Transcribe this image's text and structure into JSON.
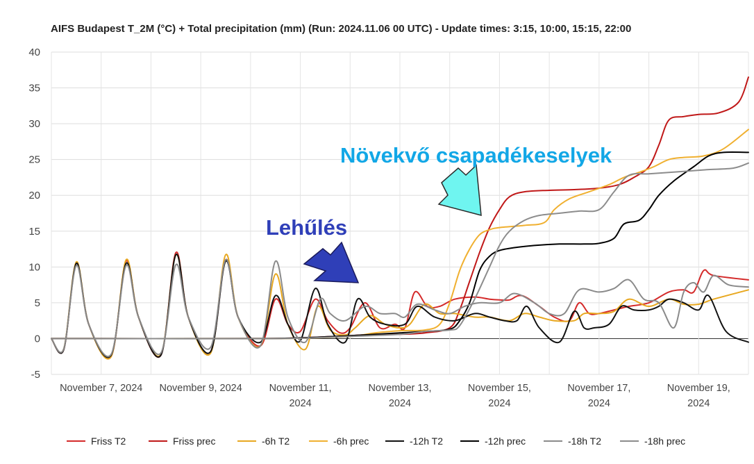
{
  "chart_data": {
    "type": "line",
    "title": "AIFS Budapest T_2M (°C) + Total precipitation (mm) (Run: 2024.11.06 00 UTC) - Update times: 3:15, 10:00, 15:15, 22:00",
    "xlabel": "",
    "ylabel": "",
    "ylim": [
      -5,
      40
    ],
    "yticks": [
      -5,
      0,
      5,
      10,
      15,
      20,
      25,
      30,
      35,
      40
    ],
    "xlim": [
      0,
      14
    ],
    "x_unit": "days since 2024-11-06 00 UTC",
    "xticks": [
      {
        "x": 1,
        "label": [
          "November 7, 2024"
        ]
      },
      {
        "x": 3,
        "label": [
          "November 9, 2024"
        ]
      },
      {
        "x": 5,
        "label": [
          "November 11,",
          "2024"
        ]
      },
      {
        "x": 7,
        "label": [
          "November 13,",
          "2024"
        ]
      },
      {
        "x": 9,
        "label": [
          "November 15,",
          "2024"
        ]
      },
      {
        "x": 11,
        "label": [
          "November 17,",
          "2024"
        ]
      },
      {
        "x": 13,
        "label": [
          "November 19,",
          "2024"
        ]
      }
    ],
    "grid": true,
    "legend_position": "bottom",
    "series": [
      {
        "name": "Friss T2",
        "color": "#d42a2a",
        "points": [
          [
            0,
            0
          ],
          [
            0.25,
            -1.5
          ],
          [
            0.5,
            10.5
          ],
          [
            0.75,
            2
          ],
          [
            1.2,
            -2.5
          ],
          [
            1.5,
            10.8
          ],
          [
            1.75,
            3
          ],
          [
            2.2,
            -2.3
          ],
          [
            2.5,
            12
          ],
          [
            2.75,
            3
          ],
          [
            3.2,
            -1.8
          ],
          [
            3.5,
            11
          ],
          [
            3.75,
            3
          ],
          [
            4.2,
            -1
          ],
          [
            4.5,
            5.5
          ],
          [
            4.75,
            2
          ],
          [
            5,
            1
          ],
          [
            5.3,
            5.5
          ],
          [
            5.55,
            2.5
          ],
          [
            5.8,
            0.8
          ],
          [
            6,
            1.5
          ],
          [
            6.3,
            5
          ],
          [
            6.6,
            1.5
          ],
          [
            6.9,
            2
          ],
          [
            7.1,
            1.5
          ],
          [
            7.3,
            6.5
          ],
          [
            7.55,
            4.5
          ],
          [
            7.8,
            4.5
          ],
          [
            8.1,
            5.5
          ],
          [
            8.5,
            5.8
          ],
          [
            8.8,
            5.5
          ],
          [
            9,
            5.4
          ],
          [
            9.2,
            5.4
          ],
          [
            9.45,
            6
          ],
          [
            9.8,
            4.5
          ],
          [
            10.1,
            3
          ],
          [
            10.4,
            2.5
          ],
          [
            10.6,
            5
          ],
          [
            10.8,
            3.5
          ],
          [
            11,
            3.5
          ],
          [
            11.3,
            4
          ],
          [
            11.6,
            4.5
          ],
          [
            12,
            5
          ],
          [
            12.4,
            6.5
          ],
          [
            12.7,
            6.8
          ],
          [
            12.9,
            6.5
          ],
          [
            13.1,
            9.5
          ],
          [
            13.3,
            8.8
          ],
          [
            14,
            8.2
          ]
        ]
      },
      {
        "name": "Friss prec",
        "color": "#c01818",
        "points": [
          [
            0,
            0
          ],
          [
            4,
            0
          ],
          [
            5,
            0.1
          ],
          [
            6,
            0.4
          ],
          [
            6.5,
            0.6
          ],
          [
            7,
            0.6
          ],
          [
            7.5,
            0.8
          ],
          [
            8,
            1.5
          ],
          [
            8.2,
            4
          ],
          [
            8.4,
            8
          ],
          [
            8.6,
            12
          ],
          [
            8.8,
            15.5
          ],
          [
            9,
            18
          ],
          [
            9.2,
            19.8
          ],
          [
            9.5,
            20.5
          ],
          [
            10,
            20.7
          ],
          [
            10.5,
            20.8
          ],
          [
            11,
            21
          ],
          [
            11.4,
            21.5
          ],
          [
            11.7,
            22.5
          ],
          [
            12,
            24
          ],
          [
            12.2,
            27
          ],
          [
            12.4,
            30.5
          ],
          [
            12.7,
            31
          ],
          [
            13,
            31.3
          ],
          [
            13.4,
            31.5
          ],
          [
            13.8,
            33
          ],
          [
            14,
            36.5
          ]
        ]
      },
      {
        "name": "-6h T2",
        "color": "#e8a820",
        "points": [
          [
            0,
            0
          ],
          [
            0.25,
            -1.4
          ],
          [
            0.5,
            10.7
          ],
          [
            0.75,
            2
          ],
          [
            1.2,
            -2.5
          ],
          [
            1.5,
            11
          ],
          [
            1.75,
            3
          ],
          [
            2.2,
            -2.2
          ],
          [
            2.5,
            11.7
          ],
          [
            2.75,
            3
          ],
          [
            3.2,
            -2
          ],
          [
            3.5,
            11.7
          ],
          [
            3.75,
            3
          ],
          [
            4.2,
            -1
          ],
          [
            4.5,
            9
          ],
          [
            4.75,
            2
          ],
          [
            5.1,
            -1.5
          ],
          [
            5.35,
            4.5
          ],
          [
            5.6,
            1.2
          ],
          [
            5.9,
            0.5
          ],
          [
            6.1,
            1.5
          ],
          [
            6.4,
            3.2
          ],
          [
            6.7,
            2
          ],
          [
            7,
            1.5
          ],
          [
            7.2,
            2
          ],
          [
            7.5,
            4.8
          ],
          [
            7.8,
            3.5
          ],
          [
            8.1,
            3.5
          ],
          [
            8.5,
            3
          ],
          [
            8.8,
            3
          ],
          [
            9.2,
            2.5
          ],
          [
            9.5,
            3.5
          ],
          [
            9.8,
            3
          ],
          [
            10.1,
            2.5
          ],
          [
            10.5,
            2.5
          ],
          [
            10.7,
            3.5
          ],
          [
            11,
            3.5
          ],
          [
            11.3,
            3.8
          ],
          [
            11.6,
            5.5
          ],
          [
            12,
            4.5
          ],
          [
            12.4,
            5.5
          ],
          [
            12.7,
            4.8
          ],
          [
            13,
            4.8
          ],
          [
            13.3,
            5.5
          ],
          [
            14,
            6.8
          ]
        ]
      },
      {
        "name": "-6h prec",
        "color": "#f0b030",
        "points": [
          [
            0,
            0
          ],
          [
            4,
            0
          ],
          [
            5,
            0.05
          ],
          [
            6,
            0.3
          ],
          [
            6.5,
            0.8
          ],
          [
            7,
            1.1
          ],
          [
            7.5,
            1.2
          ],
          [
            7.8,
            2
          ],
          [
            8,
            5
          ],
          [
            8.2,
            9.5
          ],
          [
            8.4,
            12.5
          ],
          [
            8.6,
            14.5
          ],
          [
            8.8,
            15.2
          ],
          [
            9,
            15.5
          ],
          [
            9.5,
            15.8
          ],
          [
            9.9,
            16.2
          ],
          [
            10.1,
            18
          ],
          [
            10.4,
            19.5
          ],
          [
            10.8,
            20.5
          ],
          [
            11.2,
            21.5
          ],
          [
            11.5,
            22.5
          ],
          [
            11.8,
            23.2
          ],
          [
            12.1,
            24
          ],
          [
            12.4,
            25
          ],
          [
            12.7,
            25.3
          ],
          [
            13.1,
            25.5
          ],
          [
            13.5,
            26.5
          ],
          [
            14,
            29.2
          ]
        ]
      },
      {
        "name": "-12h T2",
        "color": "#111111",
        "points": [
          [
            0,
            0
          ],
          [
            0.25,
            -1.5
          ],
          [
            0.5,
            10.5
          ],
          [
            0.75,
            2
          ],
          [
            1.2,
            -2.3
          ],
          [
            1.5,
            10.5
          ],
          [
            1.75,
            3
          ],
          [
            2.2,
            -2.3
          ],
          [
            2.5,
            11.7
          ],
          [
            2.75,
            3
          ],
          [
            3.2,
            -1.8
          ],
          [
            3.5,
            10.8
          ],
          [
            3.75,
            3
          ],
          [
            4.2,
            -0.5
          ],
          [
            4.5,
            6
          ],
          [
            4.75,
            2
          ],
          [
            5,
            -0.3
          ],
          [
            5.3,
            7
          ],
          [
            5.55,
            2
          ],
          [
            5.9,
            -0.5
          ],
          [
            6.15,
            5.5
          ],
          [
            6.4,
            3
          ],
          [
            6.7,
            2
          ],
          [
            7.1,
            2
          ],
          [
            7.35,
            4.5
          ],
          [
            7.7,
            3
          ],
          [
            8.1,
            2.5
          ],
          [
            8.5,
            3.5
          ],
          [
            8.8,
            3
          ],
          [
            9.1,
            2.5
          ],
          [
            9.35,
            2.5
          ],
          [
            9.55,
            4.5
          ],
          [
            9.8,
            1.5
          ],
          [
            10.2,
            -0.5
          ],
          [
            10.5,
            3.8
          ],
          [
            10.7,
            1.5
          ],
          [
            10.9,
            1.5
          ],
          [
            11.2,
            2
          ],
          [
            11.45,
            4.5
          ],
          [
            11.7,
            4
          ],
          [
            12,
            4
          ],
          [
            12.2,
            4.5
          ],
          [
            12.4,
            5.5
          ],
          [
            12.7,
            5
          ],
          [
            13,
            4
          ],
          [
            13.2,
            6
          ],
          [
            13.55,
            1
          ],
          [
            14,
            -0.5
          ]
        ]
      },
      {
        "name": "-12h prec",
        "color": "#000000",
        "points": [
          [
            0,
            0
          ],
          [
            4,
            0
          ],
          [
            5,
            0.1
          ],
          [
            6,
            0.4
          ],
          [
            7,
            0.8
          ],
          [
            7.5,
            1
          ],
          [
            8,
            1.3
          ],
          [
            8.2,
            2.5
          ],
          [
            8.4,
            5
          ],
          [
            8.6,
            9.5
          ],
          [
            8.8,
            11.5
          ],
          [
            9,
            12.3
          ],
          [
            9.3,
            12.7
          ],
          [
            9.7,
            13
          ],
          [
            10.2,
            13.2
          ],
          [
            10.7,
            13.2
          ],
          [
            11,
            13.3
          ],
          [
            11.3,
            14
          ],
          [
            11.5,
            16
          ],
          [
            11.8,
            16.5
          ],
          [
            12,
            18
          ],
          [
            12.2,
            20
          ],
          [
            12.5,
            22
          ],
          [
            12.9,
            24
          ],
          [
            13.2,
            25.5
          ],
          [
            13.5,
            26
          ],
          [
            14,
            26
          ]
        ]
      },
      {
        "name": "-18h T2",
        "color": "#8a8a8a",
        "points": [
          [
            0,
            0
          ],
          [
            0.25,
            -1.4
          ],
          [
            0.5,
            10.2
          ],
          [
            0.75,
            2
          ],
          [
            1.2,
            -2.2
          ],
          [
            1.5,
            10.2
          ],
          [
            1.75,
            3
          ],
          [
            2.2,
            -2
          ],
          [
            2.5,
            10.3
          ],
          [
            2.75,
            3
          ],
          [
            3.2,
            -1.2
          ],
          [
            3.5,
            11
          ],
          [
            3.75,
            3
          ],
          [
            4.2,
            -1
          ],
          [
            4.5,
            10.8
          ],
          [
            4.75,
            3
          ],
          [
            5.1,
            -0.5
          ],
          [
            5.4,
            5.5
          ],
          [
            5.6,
            3.5
          ],
          [
            5.9,
            2.5
          ],
          [
            6.3,
            4.5
          ],
          [
            6.6,
            3.5
          ],
          [
            6.9,
            3.5
          ],
          [
            7.1,
            3
          ],
          [
            7.35,
            4.8
          ],
          [
            7.7,
            4
          ],
          [
            8,
            3.5
          ],
          [
            8.3,
            4.5
          ],
          [
            8.6,
            5
          ],
          [
            9,
            5
          ],
          [
            9.3,
            6.3
          ],
          [
            9.7,
            5
          ],
          [
            10,
            3.5
          ],
          [
            10.3,
            3.5
          ],
          [
            10.6,
            6.8
          ],
          [
            11,
            6.5
          ],
          [
            11.3,
            7
          ],
          [
            11.6,
            8.2
          ],
          [
            11.9,
            5.5
          ],
          [
            12.2,
            5
          ],
          [
            12.5,
            1.5
          ],
          [
            12.7,
            6.5
          ],
          [
            12.9,
            7.8
          ],
          [
            13.1,
            6.5
          ],
          [
            13.3,
            8.8
          ],
          [
            13.6,
            7.5
          ],
          [
            14,
            7.2
          ]
        ]
      },
      {
        "name": "-18h prec",
        "color": "#8c8c8c",
        "points": [
          [
            0,
            0
          ],
          [
            4,
            0
          ],
          [
            5,
            0.05
          ],
          [
            6,
            0.3
          ],
          [
            7,
            0.6
          ],
          [
            7.5,
            1
          ],
          [
            8,
            1.2
          ],
          [
            8.2,
            1.8
          ],
          [
            8.5,
            5.5
          ],
          [
            8.8,
            10
          ],
          [
            9,
            13
          ],
          [
            9.2,
            15
          ],
          [
            9.5,
            16.5
          ],
          [
            9.8,
            17.2
          ],
          [
            10.2,
            17.5
          ],
          [
            10.6,
            17.8
          ],
          [
            11,
            18
          ],
          [
            11.3,
            20.5
          ],
          [
            11.6,
            22.8
          ],
          [
            12,
            23
          ],
          [
            12.4,
            23.2
          ],
          [
            12.8,
            23.4
          ],
          [
            13.2,
            23.6
          ],
          [
            13.7,
            23.8
          ],
          [
            14,
            24.5
          ]
        ]
      }
    ],
    "annotations": [
      {
        "text": "Lehűlés",
        "style": "blue"
      },
      {
        "text": "Növekvő csapadékeselyek",
        "style": "cyan"
      }
    ]
  },
  "annotation_colors": {
    "blue": "#2f3fb8",
    "cyan": "#12a7e6",
    "arrow_blue": "#2f3fb8",
    "arrow_cyan": "#6ff5f0"
  }
}
